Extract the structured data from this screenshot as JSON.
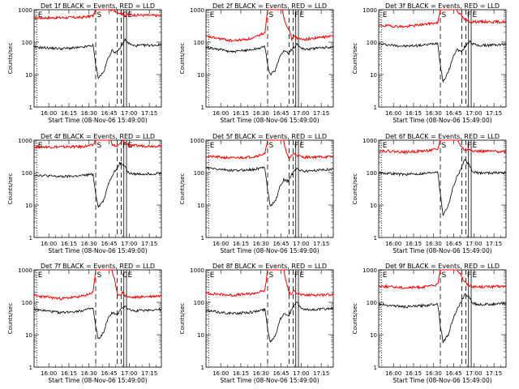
{
  "chart_data": {
    "shared": {
      "type": "line",
      "xlabel": "Start Time (08-Nov-06 15:49:00)",
      "ylabel": "Counts/sec",
      "yscale": "log",
      "ylim": [
        1,
        1000
      ],
      "x_unit": "minutes since 15:49",
      "xlim": [
        0,
        95
      ],
      "x_ticks": [
        11,
        26,
        41,
        56,
        71,
        86
      ],
      "x_tick_labels": [
        "16:00",
        "16:15",
        "16:30",
        "16:45",
        "17:00",
        "17:15"
      ],
      "y_ticks": [
        1,
        10,
        100,
        1000
      ],
      "y_tick_labels": [
        "1",
        "10",
        "100",
        "1000"
      ],
      "series_colors": {
        "events": "#000000",
        "lld": "#ff0000"
      }
    },
    "panels": [
      {
        "title": "Det 1f BLACK = Events, RED = LLD",
        "lld": [
          [
            0,
            560
          ],
          [
            35,
            580
          ],
          [
            44,
            650
          ],
          [
            46,
            1000
          ],
          [
            57,
            1000
          ],
          [
            60,
            950
          ],
          [
            65,
            750
          ],
          [
            67,
            700
          ],
          [
            68,
            700
          ],
          [
            95,
            660
          ]
        ],
        "events": [
          [
            0,
            70
          ],
          [
            20,
            63
          ],
          [
            35,
            68
          ],
          [
            44,
            80
          ],
          [
            46,
            20
          ],
          [
            48,
            8
          ],
          [
            52,
            12
          ],
          [
            55,
            30
          ],
          [
            58,
            55
          ],
          [
            60,
            50
          ],
          [
            62,
            48
          ],
          [
            64,
            65
          ],
          [
            68,
            120
          ],
          [
            70,
            95
          ],
          [
            74,
            78
          ],
          [
            95,
            82
          ]
        ],
        "markers": [
          {
            "x": 2,
            "label": "E"
          },
          {
            "x": 46,
            "label": "S"
          },
          {
            "x": 65,
            "label": "C"
          },
          {
            "x": 69,
            "label": "E"
          }
        ]
      },
      {
        "title": "Det 2f BLACK = Events, RED = LLD",
        "lld": [
          [
            0,
            150
          ],
          [
            20,
            110
          ],
          [
            35,
            130
          ],
          [
            44,
            200
          ],
          [
            46,
            1000
          ],
          [
            57,
            1000
          ],
          [
            59,
            420
          ],
          [
            62,
            250
          ],
          [
            64,
            120
          ],
          [
            66,
            160
          ],
          [
            68,
            130
          ],
          [
            72,
            120
          ],
          [
            95,
            155
          ]
        ],
        "events": [
          [
            0,
            70
          ],
          [
            20,
            50
          ],
          [
            35,
            60
          ],
          [
            44,
            72
          ],
          [
            46,
            20
          ],
          [
            48,
            10
          ],
          [
            52,
            14
          ],
          [
            55,
            35
          ],
          [
            58,
            55
          ],
          [
            60,
            50
          ],
          [
            62,
            45
          ],
          [
            64,
            60
          ],
          [
            68,
            88
          ],
          [
            70,
            72
          ],
          [
            74,
            60
          ],
          [
            95,
            72
          ]
        ],
        "markers": [
          {
            "x": 2,
            "label": "E"
          },
          {
            "x": 46,
            "label": "S"
          },
          {
            "x": 65,
            "label": "F"
          },
          {
            "x": 69,
            "label": "E"
          }
        ]
      },
      {
        "title": "Det 3f BLACK = Events, RED = LLD",
        "lld": [
          [
            0,
            330
          ],
          [
            20,
            300
          ],
          [
            35,
            360
          ],
          [
            44,
            400
          ],
          [
            46,
            1000
          ],
          [
            58,
            1000
          ],
          [
            61,
            700
          ],
          [
            64,
            500
          ],
          [
            68,
            430
          ],
          [
            95,
            420
          ]
        ],
        "events": [
          [
            0,
            88
          ],
          [
            20,
            75
          ],
          [
            35,
            82
          ],
          [
            44,
            95
          ],
          [
            46,
            20
          ],
          [
            48,
            6
          ],
          [
            52,
            12
          ],
          [
            55,
            30
          ],
          [
            58,
            60
          ],
          [
            60,
            55
          ],
          [
            62,
            50
          ],
          [
            64,
            70
          ],
          [
            68,
            110
          ],
          [
            70,
            90
          ],
          [
            74,
            78
          ],
          [
            95,
            85
          ]
        ],
        "markers": [
          {
            "x": 2,
            "label": "E"
          },
          {
            "x": 46,
            "label": "S"
          },
          {
            "x": 65,
            "label": "F"
          },
          {
            "x": 69,
            "label": "E"
          }
        ]
      },
      {
        "title": "Det 4f BLACK = Events, RED = LLD",
        "lld": [
          [
            0,
            620
          ],
          [
            35,
            630
          ],
          [
            44,
            700
          ],
          [
            46,
            1000
          ],
          [
            57,
            1000
          ],
          [
            59,
            700
          ],
          [
            62,
            650
          ],
          [
            64,
            750
          ],
          [
            66,
            1000
          ],
          [
            68,
            800
          ],
          [
            72,
            680
          ],
          [
            95,
            660
          ]
        ],
        "events": [
          [
            0,
            85
          ],
          [
            20,
            75
          ],
          [
            35,
            80
          ],
          [
            44,
            90
          ],
          [
            46,
            22
          ],
          [
            48,
            9
          ],
          [
            52,
            14
          ],
          [
            55,
            40
          ],
          [
            58,
            80
          ],
          [
            60,
            110
          ],
          [
            62,
            130
          ],
          [
            64,
            200
          ],
          [
            68,
            160
          ],
          [
            70,
            100
          ],
          [
            74,
            90
          ],
          [
            95,
            95
          ]
        ],
        "markers": [
          {
            "x": 2,
            "label": "E"
          },
          {
            "x": 46,
            "label": "S"
          },
          {
            "x": 65,
            "label": "F"
          },
          {
            "x": 69,
            "label": "E"
          }
        ]
      },
      {
        "title": "Det 5f BLACK = Events, RED = LLD",
        "lld": [
          [
            0,
            320
          ],
          [
            20,
            280
          ],
          [
            35,
            310
          ],
          [
            44,
            380
          ],
          [
            46,
            1000
          ],
          [
            58,
            1000
          ],
          [
            60,
            400
          ],
          [
            62,
            260
          ],
          [
            64,
            350
          ],
          [
            66,
            380
          ],
          [
            68,
            350
          ],
          [
            72,
            300
          ],
          [
            95,
            310
          ]
        ],
        "events": [
          [
            0,
            140
          ],
          [
            20,
            115
          ],
          [
            35,
            125
          ],
          [
            44,
            145
          ],
          [
            46,
            30
          ],
          [
            48,
            9
          ],
          [
            52,
            14
          ],
          [
            55,
            35
          ],
          [
            58,
            60
          ],
          [
            60,
            55
          ],
          [
            62,
            58
          ],
          [
            64,
            90
          ],
          [
            68,
            140
          ],
          [
            70,
            120
          ],
          [
            74,
            110
          ],
          [
            95,
            130
          ]
        ],
        "markers": [
          {
            "x": 2,
            "label": "E"
          },
          {
            "x": 46,
            "label": "S"
          },
          {
            "x": 65,
            "label": "F"
          },
          {
            "x": 69,
            "label": "E"
          }
        ]
      },
      {
        "title": "Det 6f BLACK = Events, RED = LLD",
        "lld": [
          [
            0,
            480
          ],
          [
            20,
            430
          ],
          [
            35,
            470
          ],
          [
            44,
            520
          ],
          [
            46,
            1000
          ],
          [
            57,
            1000
          ],
          [
            59,
            1000
          ],
          [
            61,
            700
          ],
          [
            64,
            500
          ],
          [
            68,
            520
          ],
          [
            72,
            460
          ],
          [
            95,
            450
          ]
        ],
        "events": [
          [
            0,
            100
          ],
          [
            20,
            88
          ],
          [
            35,
            95
          ],
          [
            44,
            110
          ],
          [
            46,
            22
          ],
          [
            48,
            5
          ],
          [
            52,
            10
          ],
          [
            55,
            30
          ],
          [
            58,
            70
          ],
          [
            60,
            100
          ],
          [
            62,
            150
          ],
          [
            64,
            250
          ],
          [
            68,
            160
          ],
          [
            70,
            105
          ],
          [
            74,
            98
          ],
          [
            95,
            100
          ]
        ],
        "markers": [
          {
            "x": 2,
            "label": "E"
          },
          {
            "x": 46,
            "label": "S"
          },
          {
            "x": 65,
            "label": "F"
          },
          {
            "x": 69,
            "label": "E"
          }
        ]
      },
      {
        "title": "Det 7f BLACK = Events, RED = LLD",
        "lld": [
          [
            0,
            160
          ],
          [
            20,
            130
          ],
          [
            35,
            150
          ],
          [
            44,
            200
          ],
          [
            46,
            1000
          ],
          [
            58,
            1000
          ],
          [
            60,
            500
          ],
          [
            62,
            180
          ],
          [
            64,
            170
          ],
          [
            66,
            200
          ],
          [
            68,
            160
          ],
          [
            72,
            140
          ],
          [
            95,
            160
          ]
        ],
        "events": [
          [
            0,
            60
          ],
          [
            20,
            48
          ],
          [
            35,
            55
          ],
          [
            44,
            65
          ],
          [
            46,
            18
          ],
          [
            48,
            7
          ],
          [
            52,
            12
          ],
          [
            55,
            30
          ],
          [
            58,
            48
          ],
          [
            60,
            45
          ],
          [
            62,
            40
          ],
          [
            64,
            55
          ],
          [
            68,
            80
          ],
          [
            70,
            62
          ],
          [
            74,
            55
          ],
          [
            95,
            60
          ]
        ],
        "markers": [
          {
            "x": 2,
            "label": "E"
          },
          {
            "x": 46,
            "label": "S"
          },
          {
            "x": 65,
            "label": "C"
          },
          {
            "x": 69,
            "label": "E"
          }
        ]
      },
      {
        "title": "Det 8f BLACK = Events, RED = LLD",
        "lld": [
          [
            0,
            190
          ],
          [
            20,
            165
          ],
          [
            35,
            185
          ],
          [
            44,
            230
          ],
          [
            46,
            1000
          ],
          [
            58,
            1000
          ],
          [
            60,
            400
          ],
          [
            62,
            200
          ],
          [
            64,
            170
          ],
          [
            66,
            250
          ],
          [
            68,
            190
          ],
          [
            72,
            165
          ],
          [
            95,
            175
          ]
        ],
        "events": [
          [
            0,
            55
          ],
          [
            20,
            45
          ],
          [
            35,
            50
          ],
          [
            44,
            60
          ],
          [
            46,
            16
          ],
          [
            48,
            6
          ],
          [
            52,
            10
          ],
          [
            55,
            28
          ],
          [
            58,
            45
          ],
          [
            60,
            42
          ],
          [
            62,
            40
          ],
          [
            64,
            60
          ],
          [
            68,
            110
          ],
          [
            70,
            70
          ],
          [
            74,
            58
          ],
          [
            95,
            65
          ]
        ],
        "markers": [
          {
            "x": 2,
            "label": "E"
          },
          {
            "x": 46,
            "label": "S"
          },
          {
            "x": 65,
            "label": "F"
          },
          {
            "x": 69,
            "label": "E"
          }
        ]
      },
      {
        "title": "Det 9f BLACK = Events, RED = LLD",
        "lld": [
          [
            0,
            320
          ],
          [
            20,
            280
          ],
          [
            35,
            300
          ],
          [
            44,
            350
          ],
          [
            46,
            1000
          ],
          [
            58,
            1000
          ],
          [
            61,
            800
          ],
          [
            63,
            500
          ],
          [
            66,
            350
          ],
          [
            68,
            330
          ],
          [
            72,
            300
          ],
          [
            95,
            310
          ]
        ],
        "events": [
          [
            0,
            88
          ],
          [
            20,
            72
          ],
          [
            35,
            80
          ],
          [
            44,
            92
          ],
          [
            46,
            20
          ],
          [
            48,
            6
          ],
          [
            52,
            10
          ],
          [
            55,
            28
          ],
          [
            58,
            55
          ],
          [
            60,
            75
          ],
          [
            62,
            110
          ],
          [
            64,
            180
          ],
          [
            68,
            140
          ],
          [
            70,
            95
          ],
          [
            74,
            85
          ],
          [
            95,
            90
          ]
        ],
        "markers": [
          {
            "x": 2,
            "label": "E"
          },
          {
            "x": 46,
            "label": "S"
          },
          {
            "x": 65,
            "label": "F"
          },
          {
            "x": 69,
            "label": "E"
          }
        ]
      }
    ]
  }
}
